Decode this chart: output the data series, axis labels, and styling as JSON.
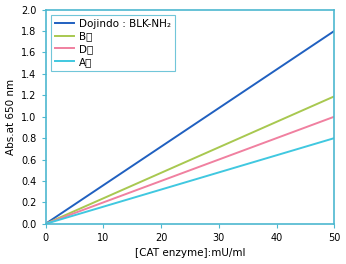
{
  "title": "",
  "xlabel": "[CAT enzyme]:mU/ml",
  "ylabel": "Abs.at 650 nm",
  "xlim": [
    0,
    50
  ],
  "ylim": [
    0,
    2.0
  ],
  "xticks": [
    0,
    10,
    20,
    30,
    40,
    50
  ],
  "yticks": [
    0,
    0.2,
    0.4,
    0.6,
    0.8,
    1.0,
    1.2,
    1.4,
    1.6,
    1.8,
    2.0
  ],
  "lines": [
    {
      "label": "Dojindo : BLK-NH₂",
      "slope": 0.036,
      "color": "#2060c0",
      "linewidth": 1.4
    },
    {
      "label": "B社",
      "slope": 0.0238,
      "color": "#a8c850",
      "linewidth": 1.4
    },
    {
      "label": "D社",
      "slope": 0.02,
      "color": "#f080a0",
      "linewidth": 1.4
    },
    {
      "label": "A社",
      "slope": 0.016,
      "color": "#40c8e0",
      "linewidth": 1.4
    }
  ],
  "legend_fontsize": 7.5,
  "axis_fontsize": 7.5,
  "tick_fontsize": 7,
  "spine_color": "#4db8d0",
  "background_color": "#ffffff",
  "figsize": [
    3.46,
    2.64
  ],
  "dpi": 100
}
